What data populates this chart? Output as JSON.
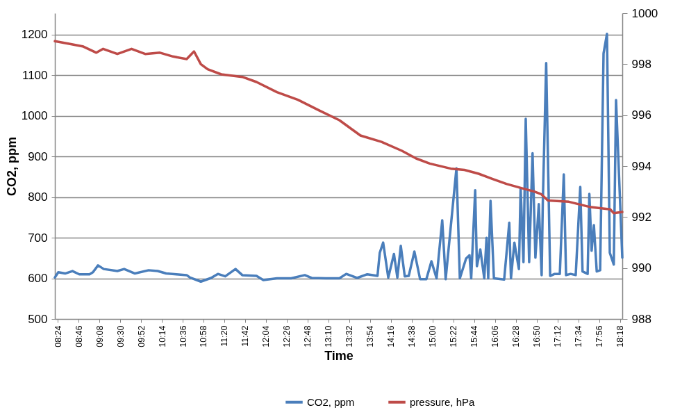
{
  "chart_data": {
    "type": "line",
    "xlabel": "Time",
    "ylabel": "CO2, ppm",
    "xlim": [
      8.35,
      18.34
    ],
    "xticks": [
      {
        "value": 8.4,
        "label": "08:24"
      },
      {
        "value": 8.7667,
        "label": "08:46"
      },
      {
        "value": 9.1333,
        "label": "09:08"
      },
      {
        "value": 9.5,
        "label": "09:30"
      },
      {
        "value": 9.8667,
        "label": "09:52"
      },
      {
        "value": 10.2333,
        "label": "10:14"
      },
      {
        "value": 10.6,
        "label": "10:36"
      },
      {
        "value": 10.9667,
        "label": "10:58"
      },
      {
        "value": 11.3333,
        "label": "11:20"
      },
      {
        "value": 11.7,
        "label": "11:42"
      },
      {
        "value": 12.0667,
        "label": "12:04"
      },
      {
        "value": 12.4333,
        "label": "12:26"
      },
      {
        "value": 12.8,
        "label": "12:48"
      },
      {
        "value": 13.1667,
        "label": "13:10"
      },
      {
        "value": 13.5333,
        "label": "13:32"
      },
      {
        "value": 13.9,
        "label": "13:54"
      },
      {
        "value": 14.2667,
        "label": "14:16"
      },
      {
        "value": 14.6333,
        "label": "14:38"
      },
      {
        "value": 15.0,
        "label": "15:00"
      },
      {
        "value": 15.3667,
        "label": "15:22"
      },
      {
        "value": 15.7333,
        "label": "15:44"
      },
      {
        "value": 16.1,
        "label": "16:06"
      },
      {
        "value": 16.4667,
        "label": "16:28"
      },
      {
        "value": 16.8333,
        "label": "16:50"
      },
      {
        "value": 17.2,
        "label": "17:12"
      },
      {
        "value": 17.5667,
        "label": "17:34"
      },
      {
        "value": 17.9333,
        "label": "17:56"
      },
      {
        "value": 18.3,
        "label": "18:18"
      }
    ],
    "ylim": [
      500,
      1253
    ],
    "yticks": [
      500,
      600,
      700,
      800,
      900,
      1000,
      1100,
      1200
    ],
    "y2lim": [
      988,
      1000
    ],
    "y2ticks": [
      988,
      990,
      992,
      994,
      996,
      998,
      1000
    ],
    "grid": "y",
    "legend": "bottom",
    "marker": "none",
    "line_style": "solid",
    "series": [
      {
        "name": "CO2, ppm",
        "color": "#4a7ebb",
        "x": [
          8.35,
          8.41,
          8.53,
          8.66,
          8.78,
          8.96,
          9.02,
          9.11,
          9.21,
          9.45,
          9.57,
          9.76,
          10.0,
          10.16,
          10.31,
          10.49,
          10.67,
          10.73,
          10.92,
          11.1,
          11.22,
          11.35,
          11.53,
          11.65,
          11.9,
          12.02,
          12.26,
          12.51,
          12.75,
          12.87,
          13.12,
          13.36,
          13.48,
          13.67,
          13.85,
          14.03,
          14.07,
          14.13,
          14.22,
          14.32,
          14.38,
          14.44,
          14.51,
          14.58,
          14.68,
          14.78,
          14.89,
          14.98,
          15.07,
          15.17,
          15.23,
          15.42,
          15.48,
          15.59,
          15.65,
          15.68,
          15.75,
          15.78,
          15.84,
          15.91,
          15.95,
          15.98,
          16.02,
          16.08,
          16.26,
          16.35,
          16.38,
          16.44,
          16.52,
          16.55,
          16.6,
          16.64,
          16.7,
          16.76,
          16.81,
          16.87,
          16.92,
          16.94,
          17.0,
          17.07,
          17.15,
          17.24,
          17.31,
          17.35,
          17.43,
          17.52,
          17.6,
          17.64,
          17.73,
          17.76,
          17.8,
          17.84,
          17.89,
          17.95,
          18.01,
          18.07,
          18.12,
          18.19,
          18.23,
          18.34
        ],
        "values": [
          602,
          615,
          612,
          618,
          610,
          610,
          615,
          632,
          623,
          618,
          623,
          612,
          620,
          618,
          612,
          610,
          608,
          602,
          592,
          601,
          611,
          605,
          623,
          608,
          606,
          596,
          600,
          600,
          608,
          601,
          600,
          600,
          611,
          601,
          610,
          606,
          663,
          688,
          602,
          660,
          602,
          680,
          605,
          606,
          666,
          598,
          598,
          642,
          600,
          743,
          598,
          871,
          600,
          649,
          657,
          600,
          817,
          630,
          671,
          600,
          700,
          600,
          791,
          600,
          597,
          737,
          600,
          688,
          623,
          822,
          640,
          993,
          640,
          908,
          651,
          783,
          608,
          783,
          1130,
          606,
          611,
          611,
          856,
          608,
          611,
          608,
          825,
          617,
          611,
          808,
          668,
          731,
          617,
          620,
          1154,
          1202,
          663,
          634,
          1039,
          651
        ]
      },
      {
        "name": "pressure, hPa",
        "color": "#be4b48",
        "axis": "y2",
        "x": [
          8.35,
          8.6,
          8.84,
          9.08,
          9.2,
          9.45,
          9.7,
          9.94,
          10.2,
          10.43,
          10.67,
          10.8,
          10.92,
          11.04,
          11.28,
          11.65,
          11.9,
          12.26,
          12.63,
          12.99,
          13.36,
          13.73,
          14.1,
          14.46,
          14.71,
          14.95,
          15.32,
          15.56,
          15.81,
          16.05,
          16.3,
          16.54,
          16.79,
          16.91,
          17.03,
          17.4,
          17.76,
          18.13,
          18.19,
          18.34
        ],
        "values": [
          998.9,
          998.8,
          998.7,
          998.45,
          998.6,
          998.4,
          998.6,
          998.4,
          998.45,
          998.3,
          998.2,
          998.5,
          998.0,
          997.8,
          997.6,
          997.5,
          997.3,
          996.9,
          996.6,
          996.2,
          995.8,
          995.2,
          994.95,
          994.6,
          994.3,
          994.1,
          993.9,
          993.85,
          993.7,
          993.5,
          993.3,
          993.15,
          993.0,
          992.9,
          992.65,
          992.6,
          992.4,
          992.3,
          992.15,
          992.2
        ]
      }
    ]
  }
}
